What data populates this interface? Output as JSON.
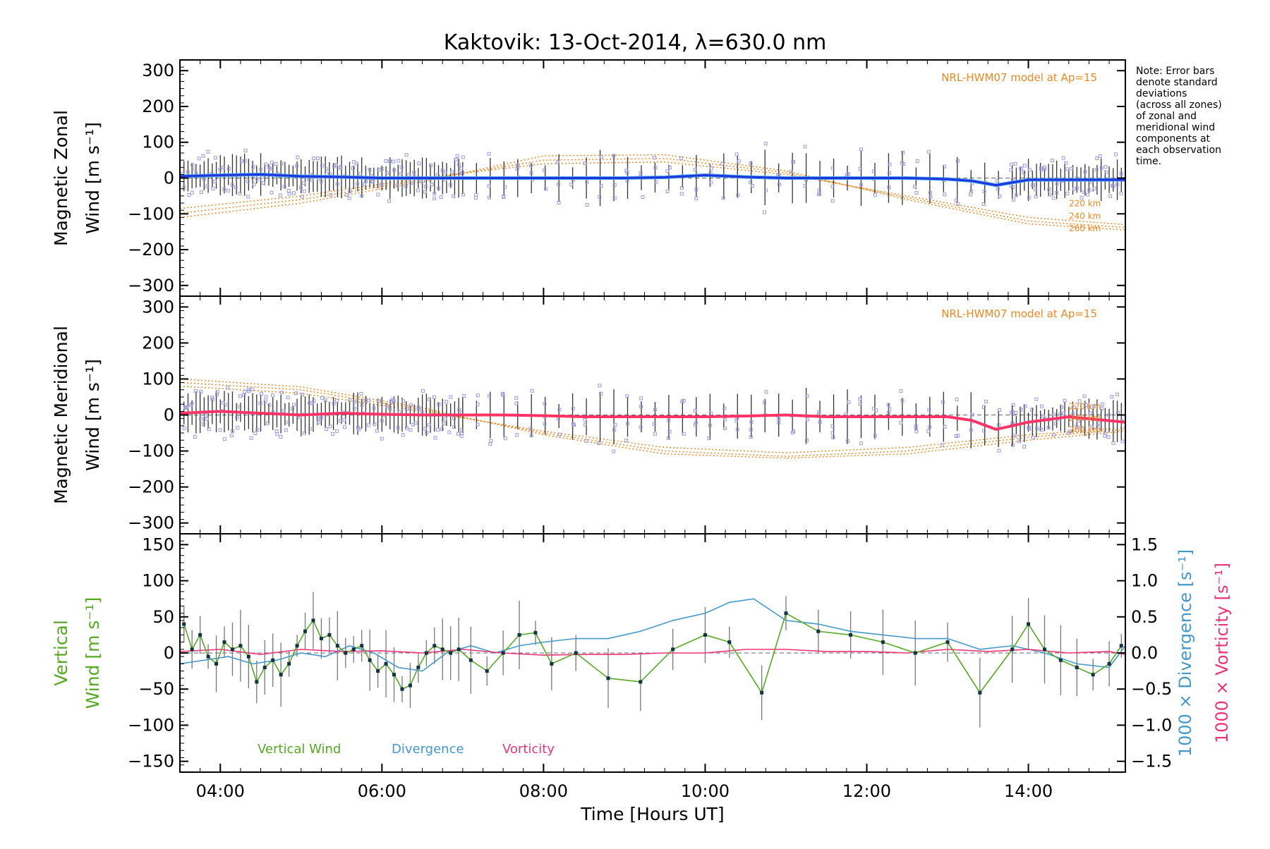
{
  "title": "Kaktovik: 13-Oct-2014, λ=630.0 nm",
  "note": [
    "Note: Error bars",
    "denote standard",
    "deviations",
    "(across all zones)",
    "of zonal and",
    "meridional wind",
    "components at",
    "each observation",
    "time."
  ],
  "colors": {
    "zonal": "#2233dd",
    "zonal_light": "#44aaee",
    "meridional": "#ff3366",
    "model": "#ee8822",
    "scatter": "#9999dd",
    "vertical": "#55aa22",
    "divergence": "#4499cc",
    "vorticity": "#ee3377",
    "errorbar": "#333333"
  },
  "chart_data": [
    {
      "type": "line",
      "panel": "zonal",
      "ylabel_lines": [
        "Magnetic Zonal",
        "Wind [m s⁻¹]"
      ],
      "ylim": [
        -330,
        330
      ],
      "yticks": [
        "300",
        "200",
        "100",
        "0",
        "−100",
        "−200",
        "−300"
      ],
      "ytick_values": [
        300,
        200,
        100,
        0,
        -100,
        -200,
        -300
      ],
      "xlim": [
        3.5,
        15.2
      ],
      "model_label": "NRL-HWM07 model at Ap=15",
      "model_alt_labels": [
        "220 km",
        "240 km",
        "260 km"
      ],
      "series": [
        {
          "x": [
            3.5,
            4.0,
            4.5,
            5.0,
            5.5,
            6.0,
            6.5,
            7.0,
            7.5,
            8.0,
            8.5,
            9.0,
            9.5,
            10.0,
            10.5,
            11.0,
            11.5,
            12.0,
            12.5,
            13.0,
            13.3,
            13.6,
            14.0,
            14.5,
            15.2
          ],
          "values": [
            5,
            8,
            10,
            5,
            3,
            0,
            0,
            0,
            0,
            0,
            0,
            0,
            2,
            8,
            3,
            0,
            0,
            0,
            0,
            -3,
            -8,
            -20,
            -5,
            -5,
            -5
          ]
        }
      ],
      "model_curves": [
        {
          "x": [
            3.5,
            5,
            6.5,
            8,
            9.5,
            11,
            12.5,
            14,
            15.2
          ],
          "values": [
            -85,
            -50,
            0,
            40,
            45,
            10,
            -50,
            -110,
            -130
          ]
        },
        {
          "x": [
            3.5,
            5,
            6.5,
            8,
            9.5,
            11,
            12.5,
            14,
            15.2
          ],
          "values": [
            -98,
            -60,
            -5,
            50,
            55,
            15,
            -55,
            -120,
            -138
          ]
        },
        {
          "x": [
            3.5,
            5,
            6.5,
            8,
            9.5,
            11,
            12.5,
            14,
            15.2
          ],
          "values": [
            -110,
            -70,
            -10,
            62,
            65,
            20,
            -60,
            -128,
            -145
          ]
        }
      ]
    },
    {
      "type": "line",
      "panel": "meridional",
      "ylabel_lines": [
        "Magnetic Meridional",
        "Wind [m s⁻¹]"
      ],
      "ylim": [
        -330,
        330
      ],
      "yticks": [
        "300",
        "200",
        "100",
        "0",
        "−100",
        "−200",
        "−300"
      ],
      "ytick_values": [
        300,
        200,
        100,
        0,
        -100,
        -200,
        -300
      ],
      "xlim": [
        3.5,
        15.2
      ],
      "model_label": "NRL-HWM07 model at Ap=15",
      "model_alt_labels": [
        "220 km",
        "240 km",
        "260 km"
      ],
      "series": [
        {
          "x": [
            3.5,
            4.0,
            4.5,
            5.0,
            5.5,
            6.0,
            6.5,
            7.0,
            7.5,
            8.0,
            8.5,
            9.0,
            9.5,
            10.0,
            10.5,
            11.0,
            11.5,
            12.0,
            12.5,
            13.0,
            13.3,
            13.6,
            14.0,
            14.5,
            15.2
          ],
          "values": [
            5,
            10,
            5,
            0,
            5,
            2,
            0,
            0,
            0,
            -2,
            -5,
            -5,
            -5,
            -5,
            -3,
            0,
            -5,
            -5,
            -5,
            -5,
            -15,
            -40,
            -20,
            -5,
            -20
          ]
        }
      ],
      "model_curves": [
        {
          "x": [
            3.5,
            5,
            6.5,
            8,
            9.5,
            11,
            12.5,
            14,
            15.2
          ],
          "values": [
            80,
            60,
            10,
            -45,
            -90,
            -105,
            -90,
            -55,
            -35
          ]
        },
        {
          "x": [
            3.5,
            5,
            6.5,
            8,
            9.5,
            11,
            12.5,
            14,
            15.2
          ],
          "values": [
            90,
            70,
            15,
            -50,
            -100,
            -115,
            -100,
            -62,
            -40
          ]
        },
        {
          "x": [
            3.5,
            5,
            6.5,
            8,
            9.5,
            11,
            12.5,
            14,
            15.2
          ],
          "values": [
            100,
            78,
            20,
            -55,
            -108,
            -120,
            -108,
            -70,
            -45
          ]
        }
      ]
    },
    {
      "type": "line",
      "panel": "vertical",
      "ylabel_lines": [
        "Vertical",
        "Wind [m s⁻¹]"
      ],
      "right_label_divergence": "1000 × Divergence [s⁻¹]",
      "right_label_vorticity": "1000 × Vorticity [s⁻¹]",
      "ylim": [
        -165,
        165
      ],
      "yticks": [
        "150",
        "100",
        "50",
        "0",
        "−50",
        "−100",
        "−150"
      ],
      "ytick_values": [
        150,
        100,
        50,
        0,
        -50,
        -100,
        -150
      ],
      "y2lim": [
        -1.65,
        1.65
      ],
      "y2ticks": [
        "1.5",
        "1.0",
        "0.5",
        "0.0",
        "−0.5",
        "−1.0",
        "−1.5"
      ],
      "y2tick_values": [
        1.5,
        1.0,
        0.5,
        0.0,
        -0.5,
        -1.0,
        -1.5
      ],
      "xlim": [
        3.5,
        15.2
      ],
      "xticks": [
        "04:00",
        "06:00",
        "08:00",
        "10:00",
        "12:00",
        "14:00"
      ],
      "xtick_values": [
        4,
        6,
        8,
        10,
        12,
        14
      ],
      "xlabel": "Time [Hours UT]",
      "legend": [
        "Vertical Wind",
        "Divergence",
        "Vorticity"
      ],
      "series": [
        {
          "name": "Vertical Wind",
          "x": [
            3.55,
            3.65,
            3.75,
            3.85,
            3.95,
            4.05,
            4.15,
            4.25,
            4.35,
            4.45,
            4.55,
            4.65,
            4.75,
            4.85,
            4.95,
            5.05,
            5.15,
            5.25,
            5.35,
            5.45,
            5.55,
            5.65,
            5.75,
            5.85,
            5.95,
            6.05,
            6.15,
            6.25,
            6.35,
            6.45,
            6.55,
            6.65,
            6.75,
            6.85,
            6.95,
            7.1,
            7.3,
            7.5,
            7.7,
            7.9,
            8.1,
            8.4,
            8.8,
            9.2,
            9.6,
            10.0,
            10.3,
            10.7,
            11.0,
            11.4,
            11.8,
            12.2,
            12.6,
            13.0,
            13.4,
            13.8,
            14.0,
            14.2,
            14.4,
            14.6,
            14.8,
            15.0,
            15.15
          ],
          "values": [
            40,
            5,
            25,
            -5,
            -15,
            15,
            5,
            10,
            -5,
            -40,
            -20,
            -10,
            -30,
            -15,
            10,
            30,
            45,
            20,
            25,
            10,
            0,
            5,
            10,
            -10,
            -25,
            -15,
            -30,
            -50,
            -45,
            -20,
            0,
            10,
            5,
            0,
            5,
            -10,
            -25,
            0,
            25,
            28,
            -15,
            0,
            -35,
            -40,
            5,
            25,
            15,
            -55,
            55,
            30,
            25,
            15,
            0,
            15,
            -55,
            5,
            40,
            5,
            -10,
            -20,
            -30,
            -15,
            10
          ]
        },
        {
          "name": "Divergence",
          "x": [
            3.5,
            3.8,
            4.1,
            4.4,
            4.7,
            5.0,
            5.3,
            5.6,
            5.9,
            6.2,
            6.5,
            6.8,
            7.1,
            7.4,
            7.7,
            8.0,
            8.4,
            8.8,
            9.2,
            9.6,
            10.0,
            10.3,
            10.6,
            11.0,
            11.4,
            11.8,
            12.2,
            12.6,
            13.0,
            13.4,
            13.8,
            14.2,
            14.6,
            15.0,
            15.2
          ],
          "values": [
            -0.15,
            -0.1,
            -0.05,
            -0.15,
            -0.1,
            0.0,
            -0.05,
            0.1,
            0.0,
            -0.2,
            -0.25,
            0.0,
            0.1,
            0.0,
            0.1,
            0.15,
            0.2,
            0.2,
            0.3,
            0.45,
            0.55,
            0.7,
            0.75,
            0.45,
            0.4,
            0.3,
            0.25,
            0.2,
            0.2,
            0.05,
            0.1,
            0.0,
            -0.15,
            -0.2,
            0.1
          ]
        },
        {
          "name": "Vorticity",
          "x": [
            3.5,
            4.0,
            4.5,
            5.0,
            5.5,
            6.0,
            6.5,
            7.0,
            7.5,
            8.0,
            8.5,
            9.0,
            9.5,
            10.0,
            10.5,
            11.0,
            11.5,
            12.0,
            12.5,
            13.0,
            13.5,
            14.0,
            14.5,
            15.0,
            15.2
          ],
          "values": [
            0.02,
            0.05,
            -0.02,
            0.05,
            0.02,
            0.03,
            0.0,
            0.05,
            0.0,
            -0.03,
            -0.02,
            -0.02,
            0.0,
            0.0,
            0.05,
            0.05,
            0.02,
            0.02,
            0.0,
            0.05,
            0.02,
            0.05,
            0.0,
            0.02,
            -0.02
          ]
        }
      ]
    }
  ]
}
